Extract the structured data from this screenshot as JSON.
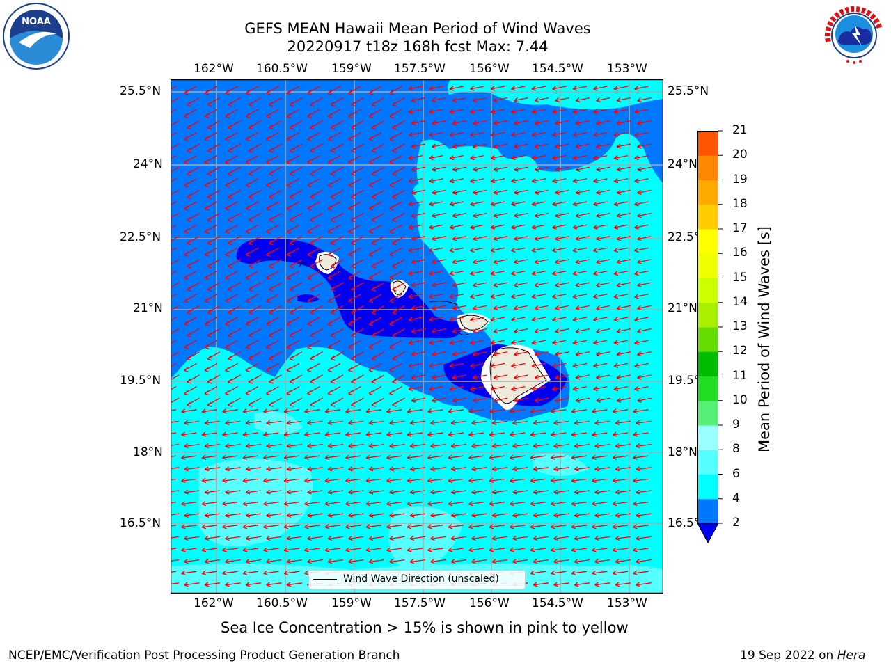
{
  "header": {
    "title_line1": "GEFS MEAN Hawaii Mean Period of Wind Waves",
    "title_line2": "20220917 t18z 168h fcst   Max: 7.44"
  },
  "logos": {
    "left_icon": "noaa-logo-icon",
    "left_text": "NOAA",
    "right_icon": "nws-logo-icon",
    "right_text": "NATIONAL WEATHER SERVICE"
  },
  "map": {
    "lon_labels": [
      "162°W",
      "160.5°W",
      "159°W",
      "157.5°W",
      "156°W",
      "154.5°W",
      "153°W"
    ],
    "lat_labels": [
      "25.5°N",
      "24°N",
      "22.5°N",
      "21°N",
      "19.5°N",
      "18°N",
      "16.5°N"
    ],
    "arrow_color": "#ff0000",
    "legend_label": "Wind Wave Direction (unscaled)"
  },
  "colorbar": {
    "title": "Mean Period of Wind Waves [s]",
    "ticks": [
      "2",
      "4",
      "6",
      "8",
      "9",
      "10",
      "11",
      "12",
      "13",
      "14",
      "15",
      "16",
      "17",
      "18",
      "19",
      "20",
      "21"
    ],
    "colors": [
      "#0077ff",
      "#00ffff",
      "#55ffff",
      "#99ffff",
      "#55ee77",
      "#22dd22",
      "#00bb00",
      "#66dd00",
      "#aaee00",
      "#ccff00",
      "#eeff00",
      "#ffff00",
      "#ffcc00",
      "#ffaa00",
      "#ff8800",
      "#ff5500",
      "#ff2200",
      "#ff0000"
    ],
    "extend_color": "#0000ee"
  },
  "fill_colors": {
    "range_lt_2": "#0000ee",
    "range_2_4": "#0077ff",
    "range_4_6": "#00ffff",
    "range_6_8": "#55ffff",
    "land": "#eeeadb"
  },
  "footer": {
    "note": "Sea Ice Concentration > 15% is shown in pink to yellow",
    "left": "NCEP/EMC/Verification Post Processing Product Generation Branch",
    "right_date": "19 Sep 2022 on ",
    "right_host": "Hera"
  }
}
